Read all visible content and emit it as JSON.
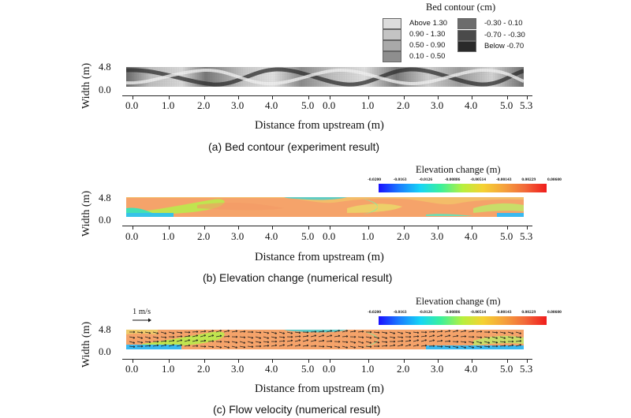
{
  "legend_a": {
    "title": "Bed contour (cm)",
    "items": [
      {
        "label": "Above   1.30",
        "color": "#dcdcdc"
      },
      {
        "label": "0.90 -  1.30",
        "color": "#c4c4c4"
      },
      {
        "label": "0.50 -  0.90",
        "color": "#a9a9a9"
      },
      {
        "label": "0.10 -  0.50",
        "color": "#8e8e8e"
      },
      {
        "label": "-0.30 -  0.10",
        "color": "#6c6c6c"
      },
      {
        "label": "-0.70 - -0.30",
        "color": "#4a4a4a"
      },
      {
        "label": "Below   -0.70",
        "color": "#2a2a2a"
      }
    ]
  },
  "colorbar": {
    "title": "Elevation change (m)",
    "ticks": [
      "-0.0200",
      "-0.0163",
      "-0.0126",
      "-0.00886",
      "-0.00514",
      "-0.00143",
      "0.00229",
      "0.00600"
    ]
  },
  "axes": {
    "ylabel": "Width (m)",
    "yticks": [
      "4.8",
      "0.0"
    ],
    "xlabel": "Distance from upstream (m)",
    "xticks": [
      "0.0",
      "1.0",
      "2.0",
      "3.0",
      "4.0",
      "5.0",
      "0.0",
      "1.0",
      "2.0",
      "3.0",
      "4.0",
      "5.0",
      "5.3"
    ]
  },
  "panels": {
    "a": {
      "caption": "(a)  Bed contour  (experiment result)"
    },
    "b": {
      "caption": "(b)  Elevation change  (numerical result)"
    },
    "c": {
      "caption": "(c)  Flow velocity  (numerical result)",
      "scale_label": "1 m/s"
    }
  }
}
